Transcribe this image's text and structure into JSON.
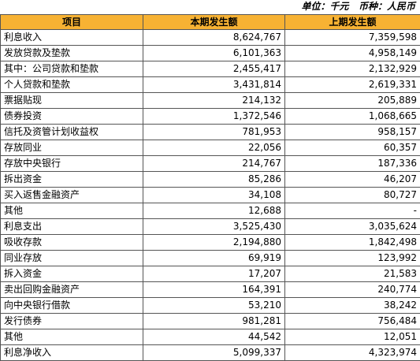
{
  "unit_text": "单位：千元   币种：人民币",
  "headers": {
    "item": "项目",
    "current": "本期发生额",
    "previous": "上期发生额"
  },
  "rows": [
    {
      "label": "利息收入",
      "current": "8,624,767",
      "previous": "7,359,598",
      "indent": 0
    },
    {
      "label": "发放贷款及垫款",
      "current": "6,101,363",
      "previous": "4,958,149",
      "indent": 0
    },
    {
      "label": "其中：公司贷款和垫款",
      "current": "2,455,417",
      "previous": "2,132,929",
      "indent": 0
    },
    {
      "label": "个人贷款和垫款",
      "current": "3,431,814",
      "previous": "2,619,331",
      "indent": 1
    },
    {
      "label": "票据贴现",
      "current": "214,132",
      "previous": "205,889",
      "indent": 2
    },
    {
      "label": "债券投资",
      "current": "1,372,546",
      "previous": "1,068,665",
      "indent": 0
    },
    {
      "label": "信托及资管计划收益权",
      "current": "781,953",
      "previous": "958,157",
      "indent": 0
    },
    {
      "label": "存放同业",
      "current": "22,056",
      "previous": "60,357",
      "indent": 0
    },
    {
      "label": "存放中央银行",
      "current": "214,767",
      "previous": "187,336",
      "indent": 0
    },
    {
      "label": "拆出资金",
      "current": "85,286",
      "previous": "46,207",
      "indent": 0
    },
    {
      "label": "买入返售金融资产",
      "current": "34,108",
      "previous": "80,727",
      "indent": 0
    },
    {
      "label": "其他",
      "current": "12,688",
      "previous": "-",
      "indent": 0
    },
    {
      "label": "利息支出",
      "current": "3,525,430",
      "previous": "3,035,624",
      "indent": 0
    },
    {
      "label": "吸收存款",
      "current": "2,194,880",
      "previous": "1,842,498",
      "indent": 0
    },
    {
      "label": "同业存放",
      "current": "69,919",
      "previous": "123,992",
      "indent": 0
    },
    {
      "label": "拆入资金",
      "current": "17,207",
      "previous": "21,583",
      "indent": 0
    },
    {
      "label": "卖出回购金融资产",
      "current": "164,391",
      "previous": "240,774",
      "indent": 0
    },
    {
      "label": "向中央银行借款",
      "current": "53,210",
      "previous": "38,242",
      "indent": 0
    },
    {
      "label": "发行债券",
      "current": "981,281",
      "previous": "756,484",
      "indent": 0
    },
    {
      "label": "其他",
      "current": "44,542",
      "previous": "12,051",
      "indent": 0
    },
    {
      "label": "利息净收入",
      "current": "5,099,337",
      "previous": "4,323,974",
      "indent": 0
    }
  ],
  "colors": {
    "header_bg": "#f7b233",
    "border": "#555555"
  }
}
